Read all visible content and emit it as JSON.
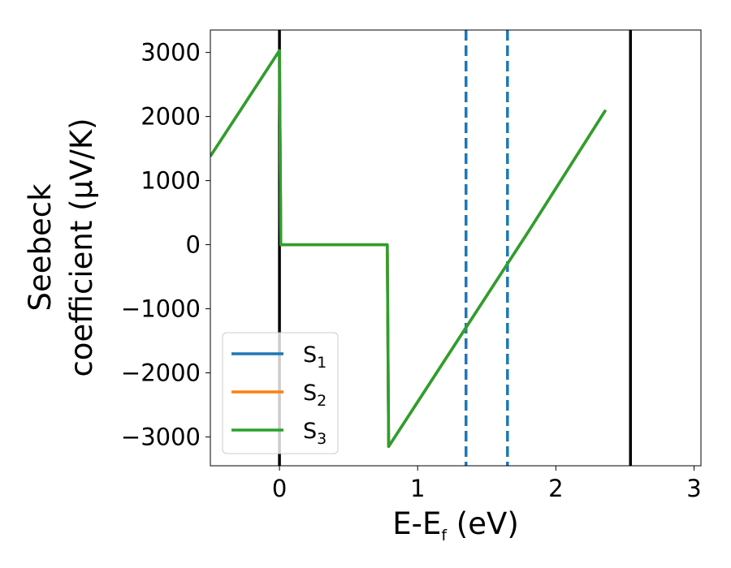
{
  "chart_data": {
    "type": "line",
    "xlabel": {
      "base": "E-E",
      "sub": "f",
      "rest": " (eV)"
    },
    "ylabel": {
      "line1": "Seebeck",
      "line2": "coefficient  (μV/K)"
    },
    "xlim": [
      -0.5,
      3.05
    ],
    "ylim": [
      -3450,
      3350
    ],
    "xticks": [
      0,
      1,
      2,
      3
    ],
    "yticks": [
      -3000,
      -2000,
      -1000,
      0,
      1000,
      2000,
      3000
    ],
    "ytick_labels": [
      "−3000",
      "−2000",
      "−1000",
      "0",
      "1000",
      "2000",
      "3000"
    ],
    "legend_position": "lower-left",
    "series": [
      {
        "name_base": "S",
        "name_sub": "1",
        "color": "#1f77b4",
        "x": [
          -0.5,
          0.0,
          0.0,
          0.01,
          0.78,
          0.79,
          1.8,
          2.36
        ],
        "y": [
          1380,
          3030,
          3030,
          0,
          0,
          -3150,
          200,
          2100
        ]
      },
      {
        "name_base": "S",
        "name_sub": "2",
        "color": "#ff7f0e",
        "x": [
          -0.5,
          0.0,
          0.0,
          0.01,
          0.78,
          0.79,
          1.8,
          2.36
        ],
        "y": [
          1380,
          3030,
          3030,
          0,
          0,
          -3150,
          200,
          2100
        ]
      },
      {
        "name_base": "S",
        "name_sub": "3",
        "color": "#2ca02c",
        "x": [
          -0.5,
          0.0,
          0.0,
          0.01,
          0.78,
          0.79,
          1.8,
          2.36
        ],
        "y": [
          1380,
          3030,
          3030,
          0,
          0,
          -3150,
          200,
          2100
        ]
      }
    ],
    "vlines": [
      {
        "x": 0.0,
        "color": "#000000",
        "style": "solid"
      },
      {
        "x": 2.54,
        "color": "#000000",
        "style": "solid"
      },
      {
        "x": 1.35,
        "color": "#1f77b4",
        "style": "dashed"
      },
      {
        "x": 1.65,
        "color": "#1f77b4",
        "style": "dashed"
      }
    ]
  }
}
